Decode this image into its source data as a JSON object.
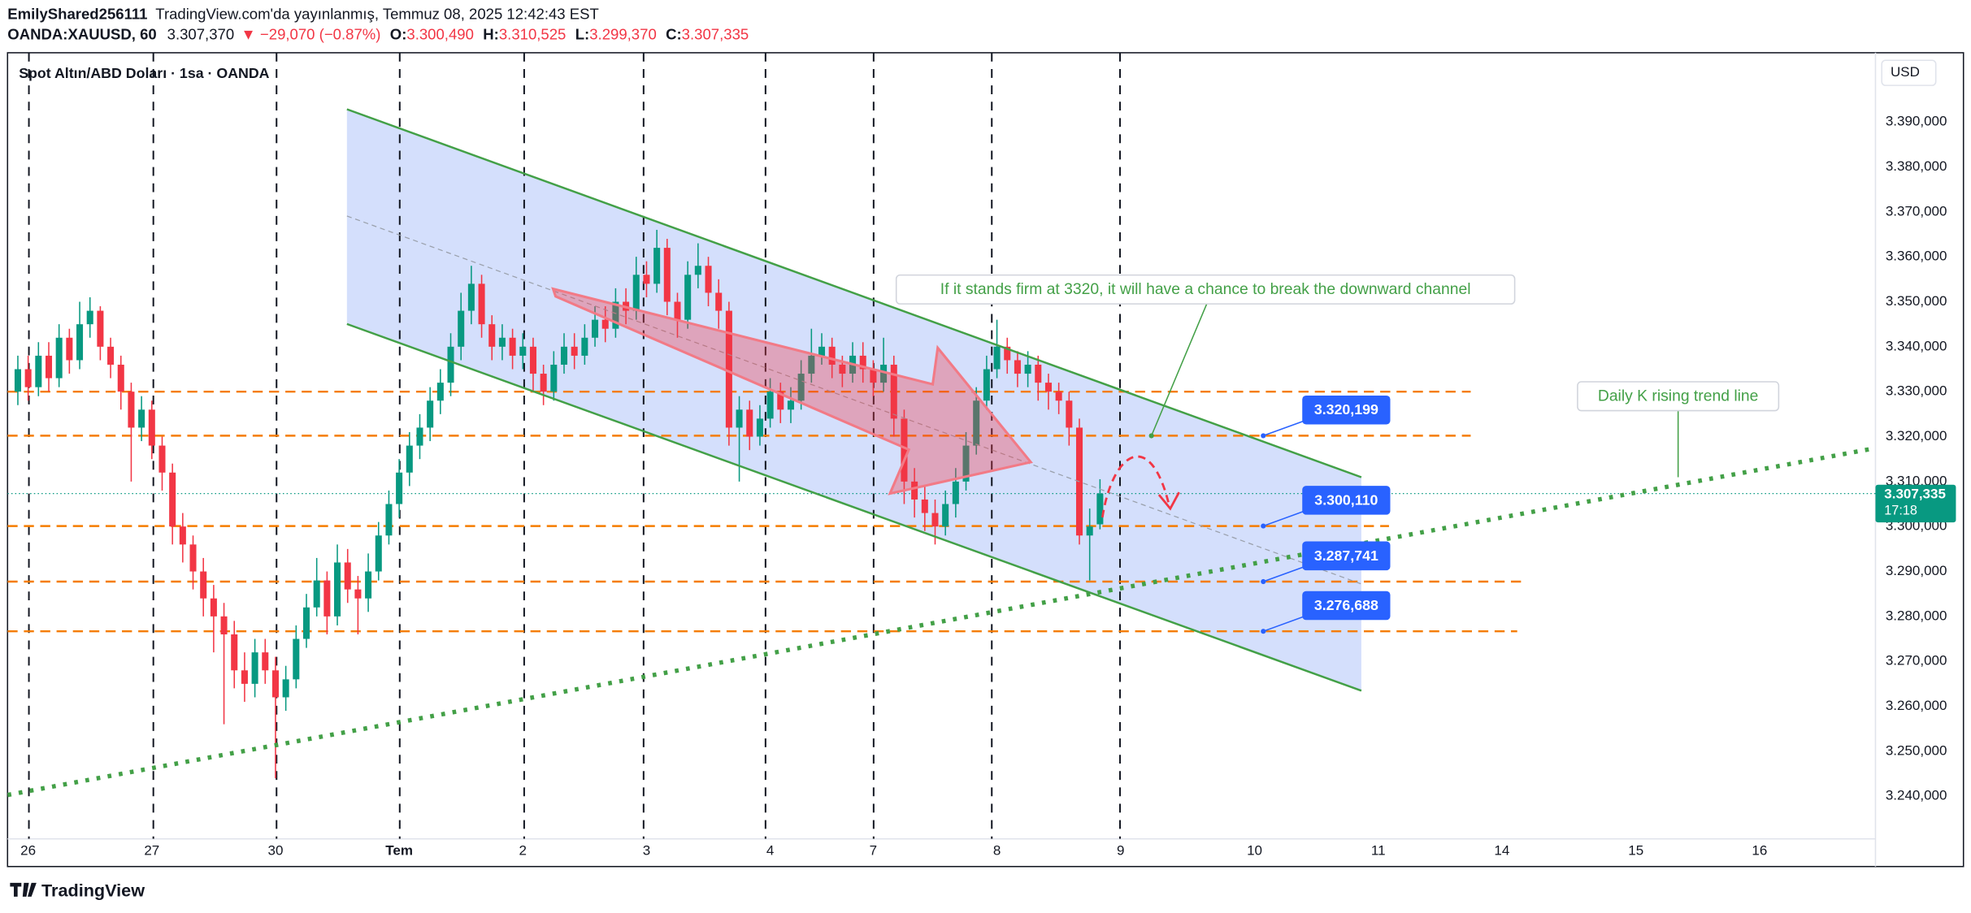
{
  "header": {
    "author": "EmilyShared256111",
    "published": "TradingView.com'da yayınlanmış, Temmuz 08, 2025 12:42:43 EST",
    "symbol": "OANDA:XAUUSD, 60",
    "price": "3.307,370",
    "change": "▼ −29,070 (−0.87%)",
    "o_label": "O:",
    "o_value": "3.300,490",
    "h_label": "H:",
    "h_value": "3.310,525",
    "l_label": "L:",
    "l_value": "3.299,370",
    "c_label": "C:",
    "c_value": "3.307,335",
    "currency": "USD",
    "brand": "TradingView"
  },
  "chart_data": {
    "type": "candlestick",
    "title": "Spot Altın/ABD Doları · 1sa · OANDA",
    "up_color": "#089981",
    "down_color": "#f23645",
    "open": [
      3330,
      3335,
      3331,
      3338,
      3333,
      3342,
      3337,
      3345,
      3348,
      3340,
      3336,
      3330,
      3322,
      3326,
      3318,
      3312,
      3300,
      3296,
      3290,
      3284,
      3280,
      3276,
      3268,
      3265,
      3272,
      3268,
      3262,
      3266,
      3275,
      3282,
      3288,
      3280,
      3292,
      3286,
      3284,
      3290,
      3298,
      3305,
      3312,
      3318,
      3322,
      3328,
      3332,
      3340,
      3348,
      3354,
      3345,
      3340,
      3342,
      3338,
      3340,
      3334,
      3330,
      3336,
      3340,
      3338,
      3342,
      3346,
      3344,
      3350,
      3348,
      3356,
      3354,
      3362,
      3350,
      3346,
      3356,
      3358,
      3352,
      3348,
      3322,
      3326,
      3320,
      3324,
      3330,
      3326,
      3328,
      3334,
      3338,
      3340,
      3336,
      3334,
      3338,
      3335,
      3332,
      3336,
      3324,
      3310,
      3306,
      3303,
      3300,
      3305,
      3310,
      3318,
      3328,
      3335,
      3340,
      3337,
      3334,
      3336,
      3332,
      3330,
      3328,
      3322,
      3298,
      3300.49
    ],
    "high": [
      3338,
      3338,
      3341,
      3341,
      3345,
      3344,
      3350,
      3351,
      3349,
      3342,
      3338,
      3332,
      3329,
      3328,
      3320,
      3314,
      3303,
      3298,
      3293,
      3287,
      3283,
      3279,
      3272,
      3275,
      3275,
      3271,
      3269,
      3278,
      3285,
      3293,
      3290,
      3296,
      3295,
      3289,
      3294,
      3301,
      3308,
      3315,
      3321,
      3325,
      3331,
      3335,
      3343,
      3352,
      3358,
      3356,
      3347,
      3345,
      3344,
      3343,
      3342,
      3336,
      3339,
      3343,
      3343,
      3345,
      3349,
      3349,
      3353,
      3353,
      3360,
      3359,
      3366,
      3364,
      3352,
      3359,
      3363,
      3360,
      3355,
      3350,
      3329,
      3328,
      3327,
      3333,
      3332,
      3331,
      3337,
      3344,
      3343,
      3342,
      3338,
      3341,
      3341,
      3337,
      3342,
      3338,
      3326,
      3313,
      3309,
      3306,
      3308,
      3313,
      3321,
      3331,
      3338,
      3346,
      3342,
      3339,
      3339,
      3338,
      3334,
      3332,
      3330,
      3324,
      3304,
      3310.525
    ],
    "low": [
      3327,
      3328,
      3329,
      3330,
      3331,
      3334,
      3335,
      3342,
      3337,
      3333,
      3326,
      3310,
      3319,
      3315,
      3308,
      3296,
      3292,
      3286,
      3280,
      3272,
      3256,
      3264,
      3261,
      3262,
      3265,
      3244,
      3259,
      3264,
      3273,
      3280,
      3276,
      3278,
      3283,
      3276,
      3281,
      3288,
      3296,
      3302,
      3309,
      3315,
      3319,
      3325,
      3329,
      3337,
      3345,
      3342,
      3337,
      3337,
      3335,
      3335,
      3330,
      3327,
      3328,
      3334,
      3335,
      3336,
      3340,
      3341,
      3342,
      3345,
      3346,
      3351,
      3352,
      3347,
      3342,
      3344,
      3353,
      3349,
      3344,
      3318,
      3310,
      3317,
      3318,
      3322,
      3323,
      3323,
      3326,
      3332,
      3336,
      3333,
      3331,
      3332,
      3332,
      3329,
      3330,
      3320,
      3305,
      3302,
      3299,
      3296,
      3298,
      3302,
      3308,
      3316,
      3326,
      3333,
      3334,
      3331,
      3331,
      3328,
      3326,
      3325,
      3318,
      3296,
      3288,
      3299.37
    ],
    "close": [
      3335,
      3331,
      3338,
      3333,
      3342,
      3337,
      3345,
      3348,
      3340,
      3336,
      3330,
      3322,
      3326,
      3318,
      3312,
      3300,
      3296,
      3290,
      3284,
      3280,
      3276,
      3268,
      3265,
      3272,
      3268,
      3262,
      3266,
      3275,
      3282,
      3288,
      3280,
      3292,
      3286,
      3284,
      3290,
      3298,
      3305,
      3312,
      3318,
      3322,
      3328,
      3332,
      3340,
      3348,
      3354,
      3345,
      3340,
      3342,
      3338,
      3340,
      3334,
      3330,
      3336,
      3340,
      3338,
      3342,
      3346,
      3344,
      3350,
      3348,
      3356,
      3354,
      3362,
      3350,
      3346,
      3356,
      3358,
      3352,
      3348,
      3322,
      3326,
      3320,
      3324,
      3330,
      3326,
      3328,
      3334,
      3338,
      3340,
      3336,
      3334,
      3338,
      3335,
      3332,
      3336,
      3324,
      3310,
      3306,
      3303,
      3300,
      3305,
      3310,
      3318,
      3328,
      3335,
      3340,
      3337,
      3334,
      3336,
      3332,
      3330,
      3328,
      3322,
      3298,
      3300,
      3307.335
    ],
    "xlim": [
      -1,
      180
    ],
    "xticks": [
      {
        "value": 1,
        "label": "26"
      },
      {
        "value": 13,
        "label": "27"
      },
      {
        "value": 25,
        "label": "30"
      },
      {
        "value": 37,
        "label": "Tem"
      },
      {
        "value": 49,
        "label": "2"
      },
      {
        "value": 61,
        "label": "3"
      },
      {
        "value": 73,
        "label": "4"
      },
      {
        "value": 83,
        "label": "7"
      },
      {
        "value": 95,
        "label": "8"
      },
      {
        "value": 107,
        "label": "9"
      },
      {
        "value": 120,
        "label": "10"
      },
      {
        "value": 132,
        "label": "11"
      },
      {
        "value": 144,
        "label": "14"
      },
      {
        "value": 157,
        "label": "15"
      },
      {
        "value": 169,
        "label": "16"
      }
    ],
    "ylim": [
      3230.5,
      3405.4
    ],
    "yticks": [
      {
        "value": 3240,
        "label": "3.240,000"
      },
      {
        "value": 3250,
        "label": "3.250,000"
      },
      {
        "value": 3260,
        "label": "3.260,000"
      },
      {
        "value": 3270,
        "label": "3.270,000"
      },
      {
        "value": 3280,
        "label": "3.280,000"
      },
      {
        "value": 3290,
        "label": "3.290,000"
      },
      {
        "value": 3300,
        "label": "3.300,000"
      },
      {
        "value": 3310,
        "label": "3.310,000"
      },
      {
        "value": 3320,
        "label": "3.320,000"
      },
      {
        "value": 3330,
        "label": "3.330,000"
      },
      {
        "value": 3340,
        "label": "3.340,000"
      },
      {
        "value": 3350,
        "label": "3.350,000"
      },
      {
        "value": 3360,
        "label": "3.360,000"
      },
      {
        "value": 3370,
        "label": "3.370,000"
      },
      {
        "value": 3380,
        "label": "3.380,000"
      },
      {
        "value": 3390,
        "label": "3.390,000"
      }
    ],
    "grid": false,
    "levels": [
      3330,
      {
        "value": 3320.199,
        "label": "3.320,199"
      },
      {
        "value": 3300.11,
        "label": "3.300,110"
      },
      {
        "value": 3287.741,
        "label": "3.287,741"
      },
      {
        "value": 3276.688,
        "label": "3.276,688"
      }
    ],
    "last_price": {
      "value": 3307.335,
      "label": "3.307,335"
    },
    "countdown": "17:18",
    "annotations": [
      "If it stands firm at 3320, it will have a chance to break the downward channel",
      "Daily K rising trend line"
    ]
  }
}
